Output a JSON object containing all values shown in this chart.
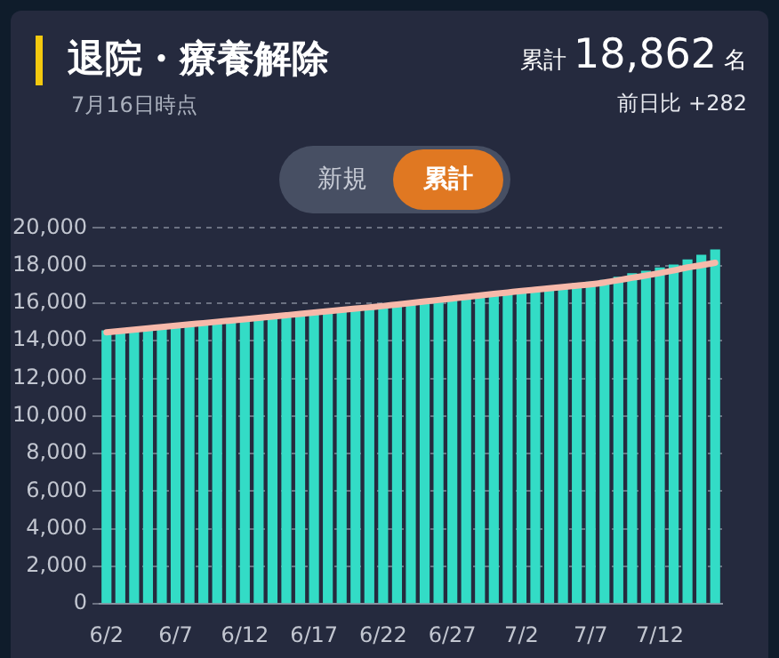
{
  "chart_data": {
    "type": "bar",
    "title": "退院・療養解除",
    "subtitle": "7月16日時点",
    "annotations": [
      "累計 18,862 名",
      "前日比 +282",
      "新規",
      "累計"
    ],
    "categories": [
      "6/2",
      null,
      null,
      null,
      null,
      "6/7",
      null,
      null,
      null,
      null,
      "6/12",
      null,
      null,
      null,
      null,
      "6/17",
      null,
      null,
      null,
      null,
      "6/22",
      null,
      null,
      null,
      null,
      "6/27",
      null,
      null,
      null,
      null,
      "7/2",
      null,
      null,
      null,
      null,
      "7/7",
      null,
      null,
      null,
      null,
      "7/12",
      null,
      null,
      null,
      null
    ],
    "series": [
      {
        "color": "#33dcc6",
        "values": [
          14550,
          14620,
          14690,
          14760,
          14830,
          14900,
          14970,
          15040,
          15110,
          15180,
          15250,
          15320,
          15390,
          15460,
          15530,
          15600,
          15670,
          15740,
          15810,
          15880,
          15950,
          16030,
          16110,
          16190,
          16270,
          16350,
          16430,
          16510,
          16590,
          16670,
          16750,
          16830,
          16900,
          16980,
          17060,
          17140,
          17240,
          17400,
          17600,
          17730,
          17900,
          18060,
          18325,
          18580,
          18862
        ]
      },
      {
        "type": "line",
        "color": "#f7b9aa",
        "values": [
          14450,
          14520,
          14590,
          14660,
          14730,
          14800,
          14870,
          14940,
          15010,
          15080,
          15150,
          15220,
          15290,
          15360,
          15430,
          15500,
          15570,
          15640,
          15710,
          15780,
          15850,
          15930,
          16010,
          16090,
          16170,
          16250,
          16330,
          16410,
          16490,
          16570,
          16650,
          16720,
          16790,
          16860,
          16930,
          17000,
          17100,
          17220,
          17350,
          17470,
          17600,
          17740,
          17900,
          18020,
          18150
        ]
      }
    ],
    "ylim": [
      0,
      20000
    ],
    "yticks": [
      0,
      {
        "value": 2000,
        "label": "2,000"
      },
      {
        "value": 4000,
        "label": "4,000"
      },
      {
        "value": 6000,
        "label": "6,000"
      },
      {
        "value": 8000,
        "label": "8,000"
      },
      {
        "value": 10000,
        "label": "10,000"
      },
      {
        "value": 12000,
        "label": "12,000"
      },
      {
        "value": 14000,
        "label": "14,000"
      },
      {
        "value": 16000,
        "label": "16,000"
      },
      {
        "value": 18000,
        "label": "18,000"
      },
      {
        "value": 20000,
        "label": "20,000"
      }
    ],
    "grid": "y",
    "legend": false,
    "marker": "none"
  }
}
